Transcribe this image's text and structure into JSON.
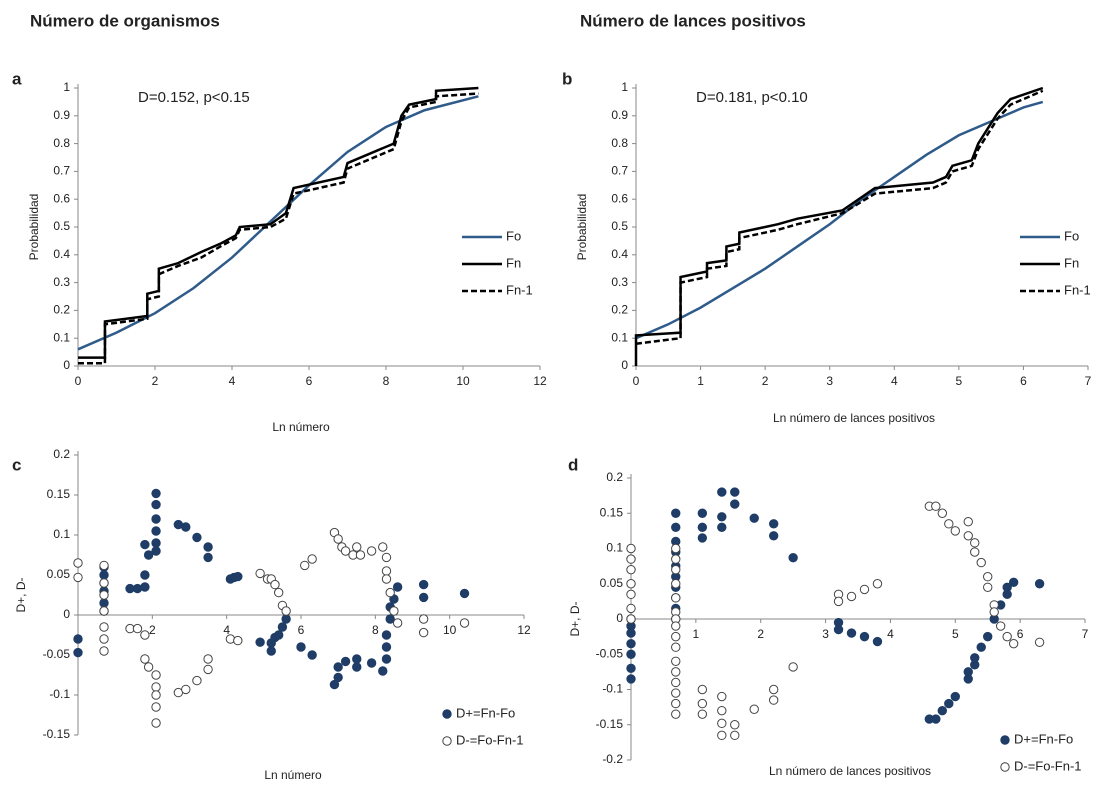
{
  "chart_data": [
    {
      "type": "line",
      "label": "a",
      "title": "Número de organismos",
      "annotation": "D=0.152, p<0.15",
      "x_label": "Ln número",
      "y_label": "Probabilidad",
      "xlim": [
        0,
        12
      ],
      "ylim": [
        0,
        1
      ],
      "xticks": [
        0,
        2,
        4,
        6,
        8,
        10,
        12
      ],
      "yticks": [
        0,
        0.1,
        0.2,
        0.3,
        0.4,
        0.5,
        0.6,
        0.7,
        0.8,
        0.9,
        1
      ],
      "series": [
        {
          "name": "Fo",
          "color": "#2f5b8a",
          "x": [
            0,
            1,
            2,
            3,
            4,
            5,
            6,
            7,
            8,
            9,
            10.4
          ],
          "values": [
            0.06,
            0.12,
            0.19,
            0.28,
            0.39,
            0.52,
            0.65,
            0.77,
            0.86,
            0.92,
            0.97
          ]
        },
        {
          "name": "Fn",
          "color": "#000000",
          "x": [
            0,
            0.7,
            0.7,
            1.8,
            1.8,
            2.1,
            2.1,
            2.6,
            3.2,
            3.7,
            4.1,
            4.2,
            5,
            5.4,
            5.6,
            6.9,
            7.0,
            8.2,
            8.4,
            8.6,
            9.3,
            9.3,
            10.4
          ],
          "values": [
            0.03,
            0.03,
            0.16,
            0.18,
            0.26,
            0.27,
            0.35,
            0.37,
            0.41,
            0.44,
            0.47,
            0.5,
            0.51,
            0.55,
            0.64,
            0.68,
            0.73,
            0.8,
            0.9,
            0.94,
            0.96,
            0.99,
            1.0
          ]
        },
        {
          "name": "Fn-1",
          "color": "#000000",
          "dashed": true,
          "x": [
            0,
            0.7,
            0.7,
            1.8,
            1.8,
            2.1,
            2.1,
            2.6,
            3.2,
            3.7,
            4.1,
            4.2,
            5,
            5.4,
            5.6,
            6.9,
            7.0,
            8.2,
            8.4,
            8.6,
            9.3,
            9.3,
            10.4
          ],
          "values": [
            0.01,
            0.01,
            0.15,
            0.17,
            0.24,
            0.25,
            0.33,
            0.36,
            0.39,
            0.43,
            0.46,
            0.49,
            0.5,
            0.53,
            0.62,
            0.66,
            0.71,
            0.78,
            0.88,
            0.93,
            0.95,
            0.97,
            0.98
          ]
        }
      ]
    },
    {
      "type": "line",
      "label": "b",
      "title": "Número de lances positivos",
      "annotation": "D=0.181, p<0.10",
      "x_label": "Ln número de lances positivos",
      "y_label": "Probabilidad",
      "xlim": [
        0,
        7
      ],
      "ylim": [
        0,
        1
      ],
      "xticks": [
        0,
        1,
        2,
        3,
        4,
        5,
        6,
        7
      ],
      "yticks": [
        0,
        0.1,
        0.2,
        0.3,
        0.4,
        0.5,
        0.6,
        0.7,
        0.8,
        0.9,
        1
      ],
      "series": [
        {
          "name": "Fo",
          "color": "#2f5b8a",
          "x": [
            0,
            0.5,
            1,
            1.5,
            2,
            2.5,
            3,
            3.5,
            4,
            4.5,
            5,
            5.5,
            6,
            6.3
          ],
          "values": [
            0.1,
            0.15,
            0.21,
            0.28,
            0.35,
            0.43,
            0.51,
            0.6,
            0.68,
            0.76,
            0.83,
            0.88,
            0.93,
            0.95
          ]
        },
        {
          "name": "Fn",
          "color": "#000000",
          "x": [
            0,
            0,
            0.69,
            0.69,
            1.1,
            1.1,
            1.4,
            1.4,
            1.6,
            1.6,
            2.2,
            2.5,
            3.2,
            3.7,
            4.6,
            4.8,
            4.9,
            5.2,
            5.3,
            5.6,
            5.8,
            6.3
          ],
          "values": [
            0,
            0.11,
            0.12,
            0.32,
            0.34,
            0.37,
            0.38,
            0.43,
            0.44,
            0.48,
            0.51,
            0.53,
            0.56,
            0.64,
            0.66,
            0.68,
            0.72,
            0.74,
            0.8,
            0.91,
            0.96,
            1.0
          ]
        },
        {
          "name": "Fn-1",
          "color": "#000000",
          "dashed": true,
          "x": [
            0,
            0.69,
            0.69,
            1.1,
            1.1,
            1.4,
            1.4,
            1.6,
            1.6,
            2.2,
            2.5,
            3.2,
            3.7,
            4.6,
            4.8,
            4.9,
            5.2,
            5.3,
            5.6,
            5.8,
            6.3
          ],
          "values": [
            0.08,
            0.1,
            0.3,
            0.32,
            0.35,
            0.36,
            0.41,
            0.42,
            0.46,
            0.49,
            0.51,
            0.55,
            0.62,
            0.64,
            0.66,
            0.7,
            0.72,
            0.78,
            0.89,
            0.94,
            0.99
          ]
        }
      ]
    },
    {
      "type": "scatter",
      "label": "c",
      "x_label": "Ln número",
      "y_label": "D+,  D-",
      "xlim": [
        0,
        12
      ],
      "ylim": [
        -0.15,
        0.2
      ],
      "xticks": [
        2,
        4,
        6,
        8,
        10,
        12
      ],
      "yticks": [
        -0.15,
        -0.1,
        -0.05,
        0,
        0.05,
        0.1,
        0.15,
        0.2
      ],
      "series": [
        {
          "name": "D+=Fn-Fo",
          "color": "#1f3d66",
          "marker": "filled",
          "x": [
            0,
            0,
            0.7,
            0.7,
            0.7,
            0.7,
            0.7,
            0.7,
            1.4,
            1.6,
            1.8,
            1.8,
            1.9,
            1.8,
            2.1,
            2.1,
            2.1,
            2.1,
            2.1,
            2.1,
            2.7,
            2.9,
            3.2,
            3.5,
            3.5,
            4.1,
            4.2,
            4.3,
            4.9,
            5.2,
            5.2,
            5.3,
            5.4,
            5.5,
            5.6,
            6.0,
            6.3,
            6.9,
            7.0,
            7.0,
            7.2,
            7.5,
            7.5,
            7.9,
            8.2,
            8.3,
            8.3,
            8.3,
            8.4,
            8.4,
            8.5,
            8.6,
            9.3,
            9.3,
            10.4
          ],
          "values": [
            -0.03,
            -0.047,
            0.06,
            0.05,
            0.04,
            0.03,
            0.015,
            0.005,
            0.033,
            0.033,
            0.035,
            0.05,
            0.075,
            0.088,
            0.08,
            0.09,
            0.105,
            0.12,
            0.138,
            0.152,
            0.113,
            0.11,
            0.097,
            0.085,
            0.072,
            0.045,
            0.047,
            0.048,
            -0.034,
            -0.035,
            -0.045,
            -0.028,
            -0.025,
            -0.015,
            -0.005,
            -0.04,
            -0.05,
            -0.087,
            -0.078,
            -0.065,
            -0.058,
            -0.065,
            -0.055,
            -0.06,
            -0.07,
            -0.055,
            -0.04,
            -0.025,
            -0.005,
            0.01,
            0.02,
            0.035,
            0.038,
            0.022,
            0.027
          ]
        },
        {
          "name": "D-=Fo-Fn-1",
          "color": "#1f3d66",
          "marker": "hollow",
          "x": [
            0,
            0,
            0.7,
            0.7,
            0.7,
            0.7,
            0.7,
            0.7,
            0.7,
            1.4,
            1.6,
            1.8,
            1.8,
            1.9,
            2.1,
            2.1,
            2.1,
            2.1,
            2.1,
            2.7,
            2.9,
            3.2,
            3.5,
            3.5,
            4.1,
            4.3,
            4.9,
            5.1,
            5.2,
            5.3,
            5.4,
            5.5,
            5.6,
            6.1,
            6.3,
            6.9,
            7.0,
            7.1,
            7.2,
            7.4,
            7.5,
            7.6,
            7.9,
            8.2,
            8.3,
            8.3,
            8.3,
            8.4,
            8.5,
            8.6,
            9.3,
            9.3,
            10.4
          ],
          "values": [
            0.065,
            0.047,
            0.062,
            0.04,
            0.025,
            0.005,
            -0.015,
            -0.03,
            -0.045,
            -0.017,
            -0.017,
            -0.025,
            -0.055,
            -0.065,
            -0.075,
            -0.09,
            -0.1,
            -0.115,
            -0.135,
            -0.097,
            -0.093,
            -0.082,
            -0.055,
            -0.068,
            -0.03,
            -0.032,
            0.052,
            0.045,
            0.045,
            0.038,
            0.028,
            0.012,
            0.005,
            0.062,
            0.07,
            0.103,
            0.095,
            0.085,
            0.08,
            0.075,
            0.085,
            0.075,
            0.08,
            0.085,
            0.072,
            0.055,
            0.045,
            0.028,
            0.005,
            -0.01,
            -0.005,
            -0.022,
            -0.01
          ]
        }
      ]
    },
    {
      "type": "scatter",
      "label": "d",
      "x_label": "Ln número de lances positivos",
      "y_label": "D+,  D-",
      "xlim": [
        0,
        7
      ],
      "ylim": [
        -0.2,
        0.2
      ],
      "xticks": [
        1,
        2,
        3,
        4,
        5,
        6,
        7
      ],
      "yticks": [
        -0.2,
        -0.15,
        -0.1,
        -0.05,
        0,
        0.05,
        0.1,
        0.15,
        0.2
      ],
      "series": [
        {
          "name": "D+=Fn-Fo",
          "color": "#1f3d66",
          "marker": "filled",
          "x": [
            0,
            0,
            0,
            0,
            0,
            0,
            0,
            0.69,
            0.69,
            0.69,
            0.69,
            0.69,
            0.69,
            0.69,
            0.69,
            0.69,
            0.69,
            1.1,
            1.1,
            1.1,
            1.4,
            1.4,
            1.4,
            1.6,
            1.6,
            1.9,
            2.2,
            2.2,
            2.5,
            3.2,
            3.2,
            3.4,
            3.6,
            3.8,
            4.6,
            4.7,
            4.8,
            4.9,
            5.0,
            5.2,
            5.2,
            5.3,
            5.3,
            5.4,
            5.5,
            5.6,
            5.7,
            5.8,
            5.8,
            5.9,
            6.3
          ],
          "values": [
            0,
            -0.01,
            -0.02,
            -0.035,
            -0.05,
            -0.07,
            -0.085,
            0.15,
            0.13,
            0.11,
            0.095,
            0.075,
            0.06,
            0.045,
            0.03,
            0.015,
            0.0,
            0.15,
            0.13,
            0.115,
            0.18,
            0.145,
            0.13,
            0.18,
            0.163,
            0.143,
            0.135,
            0.118,
            0.087,
            -0.005,
            -0.015,
            -0.02,
            -0.025,
            -0.032,
            -0.142,
            -0.142,
            -0.13,
            -0.12,
            -0.11,
            -0.085,
            -0.075,
            -0.065,
            -0.055,
            -0.04,
            -0.025,
            0,
            0.02,
            0.035,
            0.045,
            0.052,
            0.05
          ]
        },
        {
          "name": "D-=Fo-Fn-1",
          "color": "#1f3d66",
          "marker": "hollow",
          "x": [
            0,
            0,
            0,
            0,
            0,
            0,
            0,
            0.69,
            0.69,
            0.69,
            0.69,
            0.69,
            0.69,
            0.69,
            0.69,
            0.69,
            0.69,
            0.69,
            0.69,
            0.69,
            0.69,
            0.69,
            0.69,
            1.1,
            1.1,
            1.1,
            1.4,
            1.4,
            1.4,
            1.4,
            1.6,
            1.6,
            1.9,
            2.2,
            2.2,
            2.5,
            3.2,
            3.2,
            3.4,
            3.6,
            3.8,
            4.6,
            4.7,
            4.8,
            4.9,
            5.0,
            5.2,
            5.2,
            5.3,
            5.3,
            5.4,
            5.5,
            5.5,
            5.6,
            5.6,
            5.7,
            5.8,
            5.9,
            6.3
          ],
          "values": [
            0.1,
            0.085,
            0.07,
            0.05,
            0.035,
            0.015,
            0.0,
            0.1,
            0.085,
            0.07,
            0.05,
            0.03,
            0.01,
            0.0,
            -0.01,
            -0.025,
            -0.04,
            -0.06,
            -0.075,
            -0.09,
            -0.105,
            -0.12,
            -0.135,
            -0.1,
            -0.12,
            -0.135,
            -0.11,
            -0.13,
            -0.148,
            -0.165,
            -0.15,
            -0.165,
            -0.128,
            -0.115,
            -0.1,
            -0.068,
            0.035,
            0.025,
            0.032,
            0.042,
            0.05,
            0.16,
            0.16,
            0.15,
            0.135,
            0.125,
            0.138,
            0.118,
            0.108,
            0.095,
            0.08,
            0.06,
            0.045,
            0.02,
            0.01,
            -0.01,
            -0.025,
            -0.035,
            -0.033
          ]
        }
      ]
    }
  ]
}
